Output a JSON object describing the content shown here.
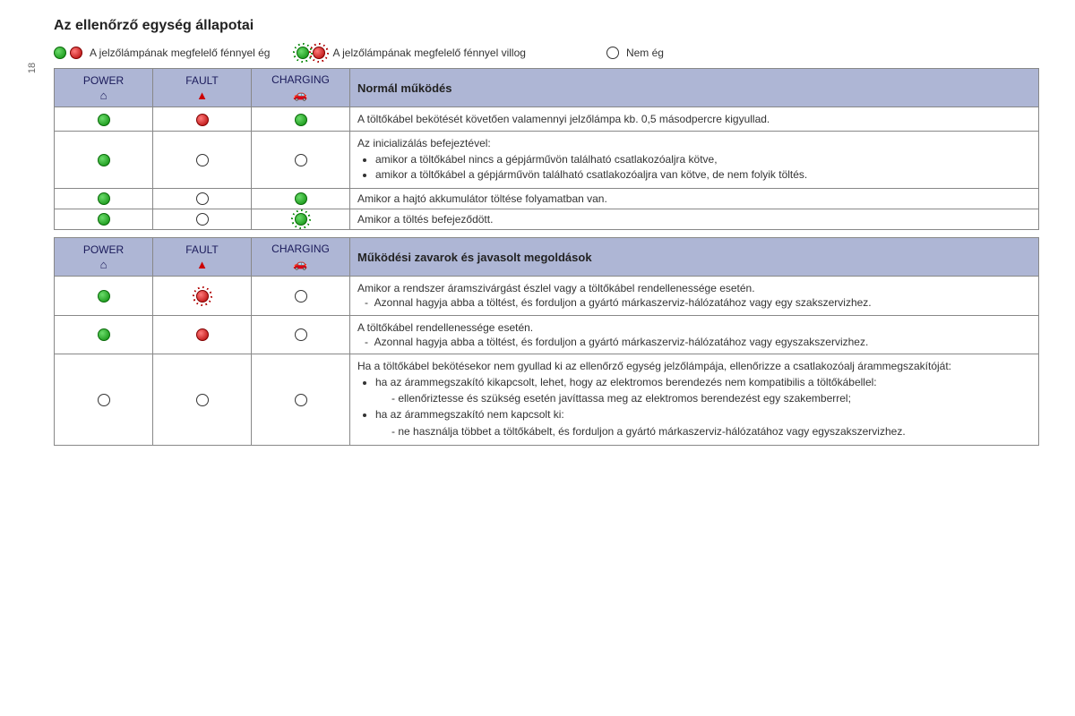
{
  "page_number": "18",
  "title": "Az ellenőrző egység állapotai",
  "legend": {
    "solid": "A jelzőlámpának megfelelő fénnyel ég",
    "flashing": "A jelzőlámpának megfelelő fénnyel villog",
    "off": "Nem ég"
  },
  "columns": {
    "power": "POWER",
    "fault": "FAULT",
    "charging": "CHARGING",
    "power_icon": "⌂",
    "fault_icon": "▲",
    "charging_icon": "🚗"
  },
  "table1": {
    "header_desc": "Normál működés",
    "rows": [
      {
        "power": "green",
        "fault": "red",
        "charging": "green",
        "desc": "A töltőkábel bekötését követően valamennyi jelzőlámpa kb. 0,5 másodpercre kigyullad."
      },
      {
        "power": "green",
        "fault": "off",
        "charging": "off",
        "desc_intro": "Az inicializálás befejeztével:",
        "bullets": [
          "amikor a töltőkábel nincs a gépjárművön található csatlakozóaljra kötve,",
          "amikor a töltőkábel a gépjárművön található csatlakozóaljra van kötve, de nem folyik töltés."
        ]
      },
      {
        "power": "green",
        "fault": "off",
        "charging": "green",
        "desc": "Amikor a hajtó akkumulátor töltése folyamatban van."
      },
      {
        "power": "green",
        "fault": "off",
        "charging": "green-flash",
        "desc": "Amikor a töltés befejeződött."
      }
    ]
  },
  "table2": {
    "header_desc": "Működési zavarok és javasolt megoldások",
    "rows": [
      {
        "power": "green",
        "fault": "red-flash",
        "charging": "off",
        "desc_intro": "Amikor a rendszer áramszivárgást észlel vagy a töltőkábel rendellenessége esetén.",
        "dashes": [
          "Azonnal hagyja abba a töltést, és forduljon a gyártó márkaszerviz-hálózatához vagy egy szakszervizhez."
        ]
      },
      {
        "power": "green",
        "fault": "red",
        "charging": "off",
        "desc_intro": "A töltőkábel rendellenessége esetén.",
        "dashes": [
          "Azonnal hagyja abba a töltést, és forduljon a gyártó márkaszerviz-hálózatához vagy egyszakszervizhez."
        ]
      },
      {
        "power": "off",
        "fault": "off",
        "charging": "off",
        "desc_intro": "Ha a töltőkábel bekötésekor nem gyullad ki az ellenőrző egység jelzőlámpája, ellenőrizze a csatlakozóalj árammegszakítóját:",
        "complex": [
          {
            "text": "ha az árammegszakító kikapcsolt, lehet, hogy az elektromos berendezés nem kompatibilis a töltőkábellel:",
            "sub": [
              "ellenőriztesse és szükség esetén javíttassa meg az elektromos berendezést egy szakemberrel;"
            ]
          },
          {
            "text": "ha az árammegszakító nem kapcsolt ki:",
            "sub": [
              "ne használja többet a töltőkábelt, és forduljon a gyártó márkaszerviz-hálózatához vagy egyszakszervizhez."
            ]
          }
        ]
      }
    ]
  },
  "colors": {
    "header_bg": "#aeb6d5",
    "border": "#888888"
  }
}
